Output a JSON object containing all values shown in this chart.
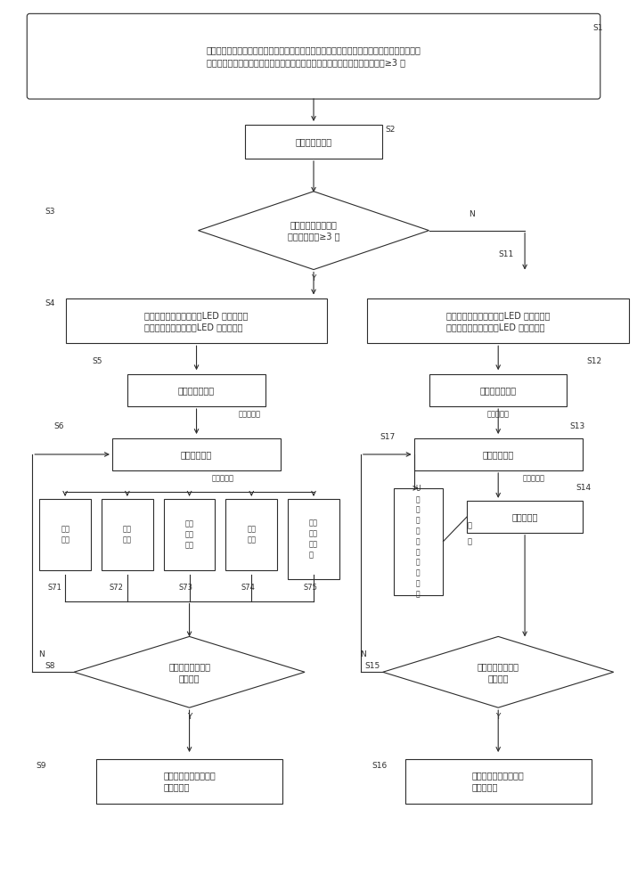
{
  "bg_color": "#ffffff",
  "line_color": "#2d2d2d",
  "text_color": "#2d2d2d",
  "fs": 7.0,
  "fs_small": 6.0,
  "fs_label": 6.5,
  "S1_text": "预设第一参数设定模式和第二参数设定模式、第一参数设定模式和第二参数设定模式分别所包\n含的设定项目以及进入第一参数设定模式的主基板拨位键的按键方式为长按键≥3 秒",
  "S2_text": "按主基板拨位键",
  "S3_text": "判断主基板按键方式\n是否为长按键≥3 秒",
  "S4_text": "进入第一参数设定模式，LED 指示灯控制\n电路以第一方式导通，LED 指示灯长亮",
  "S11_text": "进入第二参数设定模式，LED 指示灯控制\n电路以第二方式导通，LED 指示灯闪烁",
  "S5_text": "遥控器信号接入",
  "S12_text": "遥控器信号接入",
  "S6_text": "选择设置种类",
  "S13_text": "选择设置种类",
  "sub_texts": [
    "气源\n设置",
    "规格\n设置",
    "定时\n功能\n设置",
    "升数\n设置",
    "太阳\n能功\n能设\n置"
  ],
  "sub_labels": [
    "S71",
    "S72",
    "S73",
    "S74",
    "S75"
  ],
  "Ubox_text": "U\n型\n压\n力\n计\n与\n调\n压\n阀\n联\n通",
  "S14_text": "燃烧值设置",
  "S8_text": "判断所有设定项目\n是否遍历",
  "S15_text": "判断所有设定项目\n是否遍历",
  "S9_text": "保存所有设置，结束参\n数设计程序",
  "S16_text": "保存所有设置，结束参\n数设计程序",
  "lw": 0.8
}
